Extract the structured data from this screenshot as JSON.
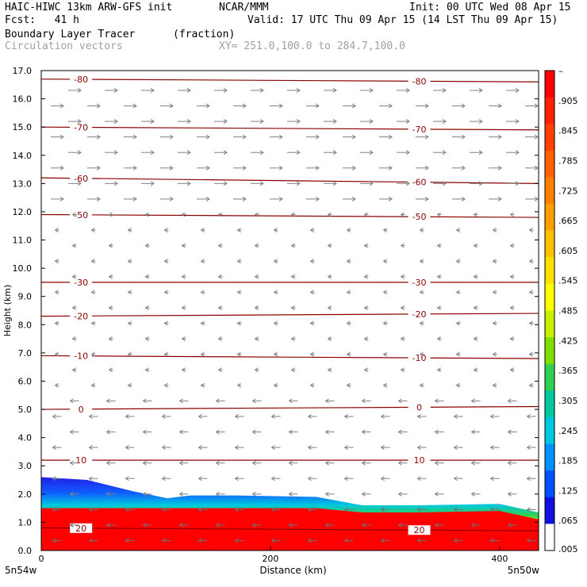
{
  "header": {
    "model": "HAIC-HIWC 13km ARW-GFS init",
    "org": "NCAR/MMM",
    "init": "Init: 00 UTC Wed 08 Apr 15",
    "fcst": "Fcst:   41 h",
    "valid": "Valid: 17 UTC Thu 09 Apr 15 (14 LST Thu 09 Apr 15)",
    "field": "Boundary Layer Tracer",
    "units": "(fraction)",
    "vectors": "Circulation vectors",
    "xy": "XY= 251.0,100.0 to 284.7,100.0"
  },
  "chart_data": {
    "type": "cross-section",
    "ylabel": "Height (km)",
    "xlabel": "Distance (km)",
    "xlim": [
      0,
      434
    ],
    "ylim": [
      0,
      17
    ],
    "x_ticks": [
      0,
      200,
      400
    ],
    "x_tick_labels": [
      "0",
      "200",
      "400"
    ],
    "x_end_labels": [
      "5n54w",
      "5n50w"
    ],
    "y_ticks": [
      0.0,
      1.0,
      2.0,
      3.0,
      4.0,
      5.0,
      6.0,
      7.0,
      8.0,
      9.0,
      10.0,
      11.0,
      12.0,
      13.0,
      14.0,
      15.0,
      16.0,
      17.0
    ],
    "y_tick_labels": [
      "0.0",
      "1.0",
      "2.0",
      "3.0",
      "4.0",
      "5.0",
      "6.0",
      "7.0",
      "8.0",
      "9.0",
      "10.0",
      "11.0",
      "12.0",
      "13.0",
      "14.0",
      "15.0",
      "16.0",
      "17.0"
    ],
    "colorbar": {
      "labels": [
        "–",
        ".905",
        ".845",
        ".785",
        ".725",
        ".665",
        ".605",
        ".545",
        ".485",
        ".425",
        ".365",
        ".305",
        ".245",
        ".185",
        ".125",
        ".065",
        ".005"
      ],
      "colors": [
        "#ff0000",
        "#ff2000",
        "#ff4000",
        "#ff6000",
        "#ff8000",
        "#ffa000",
        "#ffc000",
        "#ffe000",
        "#ffff00",
        "#c8f000",
        "#80e000",
        "#30d050",
        "#00c8a0",
        "#00c8e0",
        "#0090ff",
        "#0050ff",
        "#1010e0",
        "#ffffff"
      ]
    },
    "temperature_contours": [
      {
        "label": "-80",
        "y_left": 16.7,
        "y_right": 16.6
      },
      {
        "label": "-70",
        "y_left": 15.0,
        "y_right": 14.9
      },
      {
        "label": "-60",
        "y_left": 13.2,
        "y_right": 13.0
      },
      {
        "label": "-50",
        "y_left": 11.9,
        "y_right": 11.8
      },
      {
        "label": "-30",
        "y_left": 9.5,
        "y_right": 9.5
      },
      {
        "label": "-20",
        "y_left": 8.3,
        "y_right": 8.4
      },
      {
        "label": "-10",
        "y_left": 6.9,
        "y_right": 6.8
      },
      {
        "label": "0",
        "y_left": 5.0,
        "y_right": 5.1
      },
      {
        "label": "10",
        "y_left": 3.2,
        "y_right": 3.2
      },
      {
        "label": "20",
        "y_left": 0.8,
        "y_right": 0.7
      }
    ],
    "tracer_boundary": {
      "x": [
        0,
        40,
        80,
        110,
        130,
        170,
        240,
        280,
        330,
        400,
        434
      ],
      "top_km": [
        2.6,
        2.5,
        2.1,
        1.85,
        1.95,
        1.95,
        1.9,
        1.6,
        1.6,
        1.65,
        1.35
      ]
    }
  }
}
